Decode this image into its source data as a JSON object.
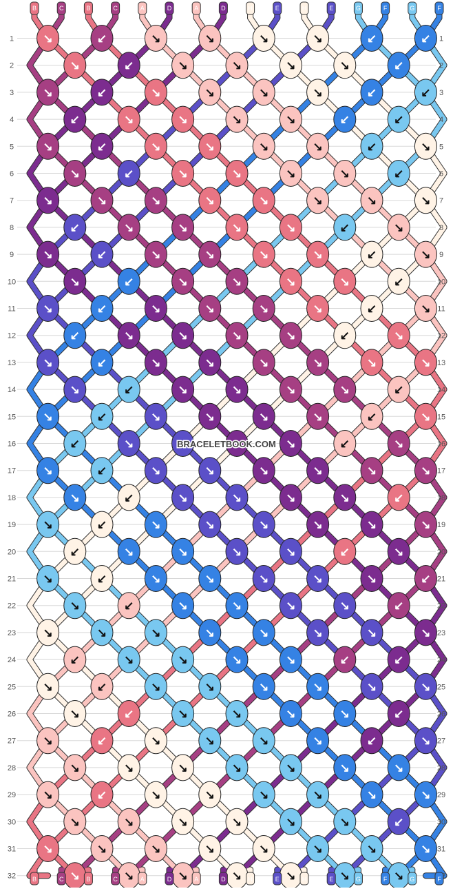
{
  "colors": {
    "A": "#fbc4c0",
    "B": "#e97584",
    "C": "#a63f83",
    "D": "#7c2c8f",
    "E": "#5b50c8",
    "F": "#3582e4",
    "G": "#79c8f0",
    "H": "#fff3e6"
  },
  "strings_top": [
    "B",
    "C",
    "B",
    "C",
    "A",
    "D",
    "A",
    "D",
    "H",
    "E",
    "H",
    "E",
    "G",
    "F",
    "G",
    "F"
  ],
  "strings_bottom": [
    "B",
    "C",
    "B",
    "C",
    "A",
    "D",
    "A",
    "D",
    "H",
    "E",
    "H",
    "E",
    "G",
    "F",
    "G",
    "F"
  ],
  "row_labels": [
    "1",
    "2",
    "3",
    "4",
    "5",
    "6",
    "7",
    "8",
    "9",
    "10",
    "11",
    "12",
    "13",
    "14",
    "15",
    "16",
    "17",
    "18",
    "19",
    "20",
    "21",
    "22",
    "23",
    "24",
    "25",
    "26",
    "27",
    "28",
    "29",
    "30",
    "31",
    "32"
  ],
  "watermark": "BRACELETBOOK.COM",
  "knots": [
    [
      "↘",
      "↙",
      "↘",
      "↘",
      "↘",
      "↘",
      "↙",
      "↙"
    ],
    [
      "↘",
      "↙",
      "↘",
      "↘",
      "↘",
      "↘",
      "↙"
    ],
    [
      "↘",
      "↙",
      "↘",
      "↘",
      "↘",
      "↘",
      "↙",
      "↙"
    ],
    [
      "↙",
      "↘",
      "↘",
      "↘",
      "↘",
      "↙",
      "↙"
    ],
    [
      "↘",
      "↙",
      "↘",
      "↘",
      "↘",
      "↘",
      "↙",
      "↘"
    ],
    [
      "↘",
      "↙",
      "↘",
      "↘",
      "↘",
      "↘",
      "↙"
    ],
    [
      "↘",
      "↘",
      "↘",
      "↘",
      "↘",
      "↘",
      "↘",
      "↘"
    ],
    [
      "↙",
      "↘",
      "↘",
      "↘",
      "↘",
      "↙",
      "↘"
    ],
    [
      "↘",
      "↙",
      "↘",
      "↘",
      "↘",
      "↘",
      "↙",
      "↘"
    ],
    [
      "↘",
      "↙",
      "↘",
      "↘",
      "↘",
      "↘",
      "↙"
    ],
    [
      "↘",
      "↙",
      "↘",
      "↘",
      "↘",
      "↘",
      "↙",
      "↘"
    ],
    [
      "↙",
      "↘",
      "↘",
      "↘",
      "↘",
      "↙",
      "↘"
    ],
    [
      "↘",
      "↙",
      "↘",
      "↘",
      "↘",
      "↘",
      "↘",
      "↘"
    ],
    [
      "↘",
      "↙",
      "↘",
      "↘",
      "↘",
      "↘",
      "↙"
    ],
    [
      "↘",
      "↙",
      "↘",
      "↘",
      "↘",
      "↘",
      "↙",
      "↘"
    ],
    [
      "↙",
      "↘",
      "↘",
      "↘",
      "↘",
      "↙",
      "↘"
    ],
    [
      "↘",
      "↙",
      "↘",
      "↘",
      "↘",
      "↘",
      "↘",
      "↘"
    ],
    [
      "↘",
      "↙",
      "↘",
      "↘",
      "↘",
      "↘",
      "↙"
    ],
    [
      "↘",
      "↙",
      "↘",
      "↘",
      "↘",
      "↘",
      "↘",
      "↘"
    ],
    [
      "↙",
      "↘",
      "↘",
      "↘",
      "↘",
      "↙",
      "↘"
    ],
    [
      "↘",
      "↙",
      "↘",
      "↘",
      "↘",
      "↘",
      "↘",
      "↙"
    ],
    [
      "↘",
      "↙",
      "↘",
      "↘",
      "↘",
      "↘",
      "↙"
    ],
    [
      "↘",
      "↘",
      "↘",
      "↘",
      "↘",
      "↘",
      "↘",
      "↘"
    ],
    [
      "↙",
      "↘",
      "↘",
      "↘",
      "↘",
      "↙",
      "↙"
    ],
    [
      "↘",
      "↙",
      "↘",
      "↘",
      "↘",
      "↘",
      "↘",
      "↘"
    ],
    [
      "↘",
      "↙",
      "↘",
      "↘",
      "↘",
      "↘",
      "↙"
    ],
    [
      "↘",
      "↙",
      "↘",
      "↘",
      "↘",
      "↘",
      "↙",
      "↘"
    ],
    [
      "↘",
      "↘",
      "↘",
      "↘",
      "↘",
      "↘",
      "↘"
    ],
    [
      "↘",
      "↙",
      "↘",
      "↘",
      "↘",
      "↘",
      "↘",
      "↘"
    ],
    [
      "↘",
      "↘",
      "↘",
      "↘",
      "↘",
      "↘",
      "↙"
    ],
    [
      "↘",
      "↘",
      "↘",
      "↘",
      "↘",
      "↘",
      "↘",
      "↘"
    ],
    [
      "↘",
      "↘",
      "↘",
      "↘",
      "↘",
      "↘",
      "↘"
    ]
  ]
}
